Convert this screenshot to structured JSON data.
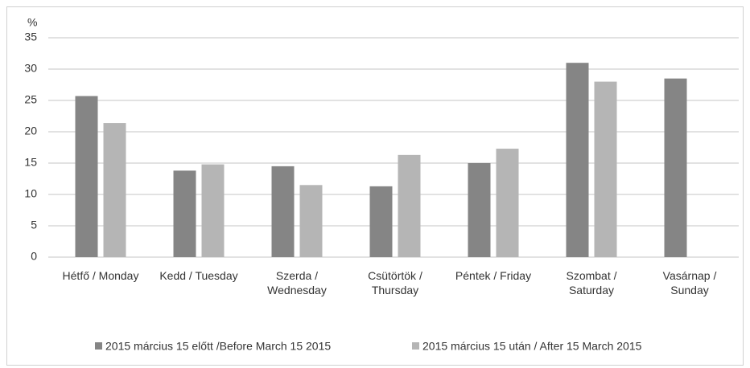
{
  "chart_data": {
    "type": "bar",
    "y_label": "%",
    "categories": [
      "Hétfő / Monday",
      "Kedd / Tuesday",
      "Szerda / Wednesday",
      "Csütörtök / Thursday",
      "Péntek / Friday",
      "Szombat / Saturday",
      "Vasárnap / Sunday"
    ],
    "series": [
      {
        "name": "2015 március 15 előtt /Before March 15 2015",
        "color": "#858585",
        "values": [
          25.7,
          13.8,
          14.5,
          11.3,
          15.0,
          31.0,
          28.5
        ]
      },
      {
        "name": "2015 március 15 után / After 15 March 2015",
        "color": "#b5b5b5",
        "values": [
          21.4,
          14.8,
          11.5,
          16.3,
          17.3,
          28.0,
          null
        ]
      }
    ],
    "ylim": [
      0,
      35
    ],
    "yticks": [
      0,
      5,
      10,
      15,
      20,
      25,
      30,
      35
    ],
    "grid": true,
    "legend": "bottom"
  }
}
